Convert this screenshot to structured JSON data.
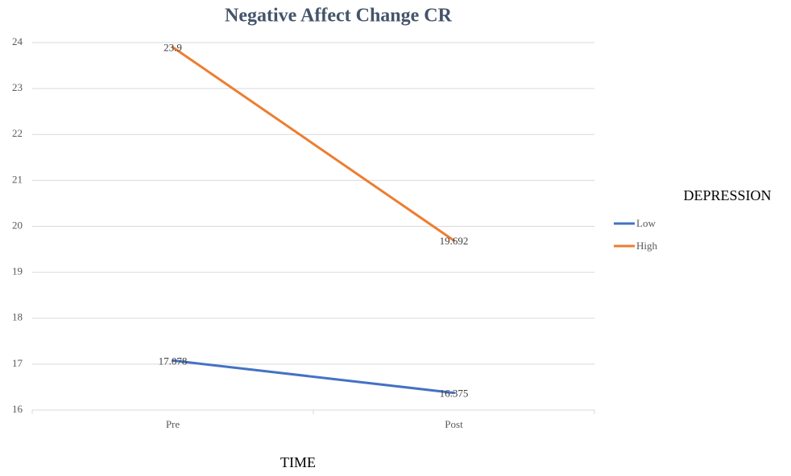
{
  "chart_data": {
    "type": "line",
    "title": "Negative Affect Change CR",
    "x_label": "TIME",
    "legend_title": "DEPRESSION",
    "categories": [
      "Pre",
      "Post"
    ],
    "series": [
      {
        "name": "Low",
        "color": "#4472c4",
        "values": [
          17.078,
          16.375
        ]
      },
      {
        "name": "High",
        "color": "#ed7d31",
        "values": [
          23.9,
          19.692
        ]
      }
    ],
    "ylim": [
      16,
      24
    ],
    "yticks": [
      16,
      17,
      18,
      19,
      20,
      21,
      22,
      23,
      24
    ],
    "grid": true,
    "legend": "right"
  }
}
